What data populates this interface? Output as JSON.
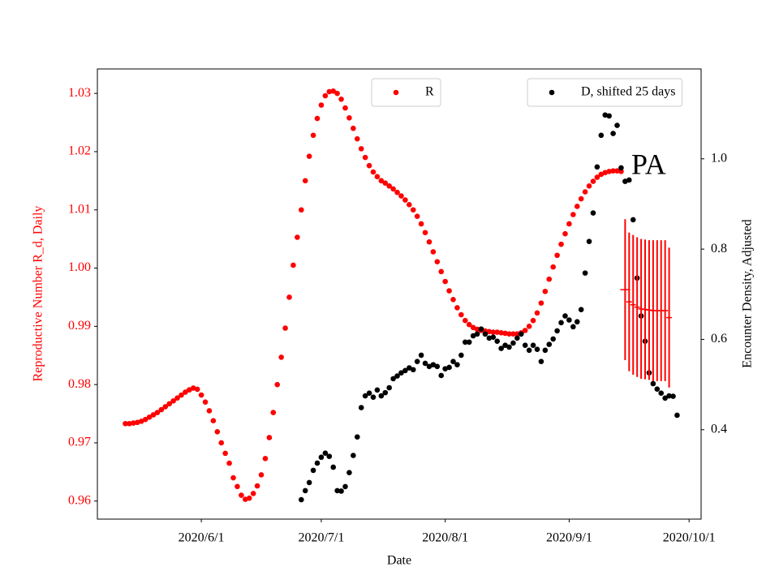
{
  "chart_data": {
    "type": "scatter",
    "xlabel": "Date",
    "ylabel": "Reproductive Number R_d, Daily",
    "y2label": "Encounter Density, Adjusted",
    "annotation": "PA",
    "xlim": [
      "2020/5/6",
      "2020/10/4"
    ],
    "xticks": [
      "2020/6/1",
      "2020/7/1",
      "2020/8/1",
      "2020/9/1",
      "2020/10/1"
    ],
    "ylim": [
      0.9569,
      1.0342
    ],
    "yticks": [
      0.96,
      0.97,
      0.98,
      0.99,
      {
        "value": 1,
        "label": "1.00"
      },
      1.01,
      1.02,
      1.03
    ],
    "ylabel_color": "#ff0000",
    "y2lim": [
      0.202,
      1.199
    ],
    "y2ticks": [
      0.4,
      0.6,
      0.8,
      {
        "value": 1,
        "label": "1.0"
      }
    ],
    "x": [
      "2020/5/13",
      "2020/5/14",
      "2020/5/15",
      "2020/5/16",
      "2020/5/17",
      "2020/5/18",
      "2020/5/19",
      "2020/5/20",
      "2020/5/21",
      "2020/5/22",
      "2020/5/23",
      "2020/5/24",
      "2020/5/25",
      "2020/5/26",
      "2020/5/27",
      "2020/5/28",
      "2020/5/29",
      "2020/5/30",
      "2020/5/31",
      "2020/6/1",
      "2020/6/2",
      "2020/6/3",
      "2020/6/4",
      "2020/6/5",
      "2020/6/6",
      "2020/6/7",
      "2020/6/8",
      "2020/6/9",
      "2020/6/10",
      "2020/6/11",
      "2020/6/12",
      "2020/6/13",
      "2020/6/14",
      "2020/6/15",
      "2020/6/16",
      "2020/6/17",
      "2020/6/18",
      "2020/6/19",
      "2020/6/20",
      "2020/6/21",
      "2020/6/22",
      "2020/6/23",
      "2020/6/24",
      "2020/6/25",
      "2020/6/26",
      "2020/6/27",
      "2020/6/28",
      "2020/6/29",
      "2020/6/30",
      "2020/7/1",
      "2020/7/2",
      "2020/7/3",
      "2020/7/4",
      "2020/7/5",
      "2020/7/6",
      "2020/7/7",
      "2020/7/8",
      "2020/7/9",
      "2020/7/10",
      "2020/7/11",
      "2020/7/12",
      "2020/7/13",
      "2020/7/14",
      "2020/7/15",
      "2020/7/16",
      "2020/7/17",
      "2020/7/18",
      "2020/7/19",
      "2020/7/20",
      "2020/7/21",
      "2020/7/22",
      "2020/7/23",
      "2020/7/24",
      "2020/7/25",
      "2020/7/26",
      "2020/7/27",
      "2020/7/28",
      "2020/7/29",
      "2020/7/30",
      "2020/7/31",
      "2020/8/1",
      "2020/8/2",
      "2020/8/3",
      "2020/8/4",
      "2020/8/5",
      "2020/8/6",
      "2020/8/7",
      "2020/8/8",
      "2020/8/9",
      "2020/8/10",
      "2020/8/11",
      "2020/8/12",
      "2020/8/13",
      "2020/8/14",
      "2020/8/15",
      "2020/8/16",
      "2020/8/17",
      "2020/8/18",
      "2020/8/19",
      "2020/8/20",
      "2020/8/21",
      "2020/8/22",
      "2020/8/23",
      "2020/8/24",
      "2020/8/25",
      "2020/8/26",
      "2020/8/27",
      "2020/8/28",
      "2020/8/29",
      "2020/8/30",
      "2020/8/31",
      "2020/9/1",
      "2020/9/2",
      "2020/9/3",
      "2020/9/4",
      "2020/9/5",
      "2020/9/6",
      "2020/9/7",
      "2020/9/8",
      "2020/9/9",
      "2020/9/10",
      "2020/9/11",
      "2020/9/12",
      "2020/9/13",
      "2020/9/14",
      "2020/9/15",
      "2020/9/16",
      "2020/9/17",
      "2020/9/18",
      "2020/9/19",
      "2020/9/20",
      "2020/9/21",
      "2020/9/22",
      "2020/9/23",
      "2020/9/24",
      "2020/9/25",
      "2020/9/26",
      "2020/9/27",
      "2020/9/28"
    ],
    "series": [
      {
        "name": "R",
        "color": "#ff0000",
        "legend_loc": "upper center",
        "values": [
          0.9733,
          0.9733,
          0.9734,
          0.9735,
          0.9737,
          0.974,
          0.9744,
          0.9748,
          0.9752,
          0.9757,
          0.9762,
          0.9767,
          0.9772,
          0.9777,
          0.9782,
          0.9787,
          0.9791,
          0.9794,
          0.9792,
          0.9782,
          0.977,
          0.9755,
          0.9738,
          0.9719,
          0.97,
          0.9682,
          0.9665,
          0.964,
          0.9625,
          0.961,
          0.9603,
          0.9605,
          0.9613,
          0.9626,
          0.9645,
          0.9673,
          0.9709,
          0.9752,
          0.98,
          0.9847,
          0.9897,
          0.995,
          1.0005,
          1.0053,
          1.01,
          1.015,
          1.0192,
          1.0228,
          1.0257,
          1.028,
          1.0296,
          1.0303,
          1.0304,
          1.03,
          1.029,
          1.0275,
          1.0258,
          1.024,
          1.0222,
          1.0205,
          1.019,
          1.0176,
          1.0165,
          1.0157,
          1.015,
          1.0146,
          1.0141,
          1.0136,
          1.013,
          1.0124,
          1.0117,
          1.0109,
          1.01,
          1.0089,
          1.0076,
          1.0061,
          1.0045,
          1.0028,
          1.0011,
          0.9994,
          0.9977,
          0.9961,
          0.9946,
          0.9932,
          0.992,
          0.991,
          0.9903,
          0.9898,
          0.9895,
          0.9893,
          0.9892,
          0.9891,
          0.989,
          0.989,
          0.9889,
          0.9888,
          0.9887,
          0.9887,
          0.9887,
          0.9889,
          0.9893,
          0.99,
          0.991,
          0.9923,
          0.994,
          0.996,
          0.9981,
          1.0002,
          1.0022,
          1.0041,
          1.0059,
          1.0076,
          1.0092,
          1.0106,
          1.0119,
          1.0131,
          1.0141,
          1.0149,
          1.0156,
          1.0161,
          1.0164,
          1.0166,
          1.0167,
          1.0167,
          1.0166,
          null,
          null,
          null,
          null,
          null,
          null,
          null,
          null,
          null,
          null,
          null,
          null,
          null,
          null
        ]
      },
      {
        "name": "D, shifted 25 days",
        "color": "#000000",
        "axis": "y2",
        "legend_loc": "upper right",
        "values": [
          null,
          null,
          null,
          null,
          null,
          null,
          null,
          null,
          null,
          null,
          null,
          null,
          null,
          null,
          null,
          null,
          null,
          null,
          null,
          null,
          null,
          null,
          null,
          null,
          null,
          null,
          null,
          null,
          null,
          null,
          null,
          null,
          null,
          null,
          null,
          null,
          null,
          null,
          null,
          null,
          null,
          null,
          null,
          null,
          0.245,
          0.265,
          0.283,
          0.31,
          0.326,
          0.339,
          0.348,
          0.341,
          0.317,
          0.265,
          0.264,
          0.274,
          0.305,
          0.343,
          0.384,
          0.449,
          0.475,
          0.481,
          0.472,
          0.488,
          0.475,
          0.482,
          0.493,
          0.513,
          0.519,
          0.526,
          0.531,
          0.537,
          0.533,
          0.551,
          0.565,
          0.547,
          0.54,
          0.544,
          0.54,
          0.52,
          0.535,
          0.538,
          0.551,
          0.544,
          0.565,
          0.594,
          0.594,
          0.608,
          0.612,
          0.623,
          0.612,
          0.603,
          0.605,
          0.596,
          0.58,
          0.587,
          0.583,
          0.592,
          0.603,
          0.612,
          0.587,
          0.576,
          0.587,
          0.578,
          0.551,
          0.576,
          0.589,
          0.601,
          0.619,
          0.637,
          0.652,
          0.643,
          0.628,
          0.639,
          0.666,
          0.747,
          0.817,
          0.88,
          0.982,
          1.052,
          1.097,
          1.095,
          1.056,
          1.074,
          0.98,
          0.95,
          0.953,
          0.865,
          0.736,
          0.652,
          0.596,
          0.526,
          0.502,
          0.49,
          0.481,
          0.47,
          0.475,
          0.474,
          0.432
        ]
      }
    ],
    "error_bars": {
      "color": "#ff0000",
      "x": [
        "2020/9/15",
        "2020/9/16",
        "2020/9/17",
        "2020/9/18",
        "2020/9/19",
        "2020/9/20",
        "2020/9/21",
        "2020/9/22",
        "2020/9/23",
        "2020/9/24",
        "2020/9/25",
        "2020/9/26"
      ],
      "values": [
        0.9963,
        0.9942,
        0.9937,
        0.9933,
        0.993,
        0.9929,
        0.9928,
        0.9927,
        0.9927,
        0.9927,
        0.9927,
        0.9915
      ],
      "errors": [
        0.0121,
        0.0119,
        0.012,
        0.012,
        0.012,
        0.012,
        0.012,
        0.0121,
        0.0121,
        0.0121,
        0.0121,
        0.012
      ]
    }
  }
}
